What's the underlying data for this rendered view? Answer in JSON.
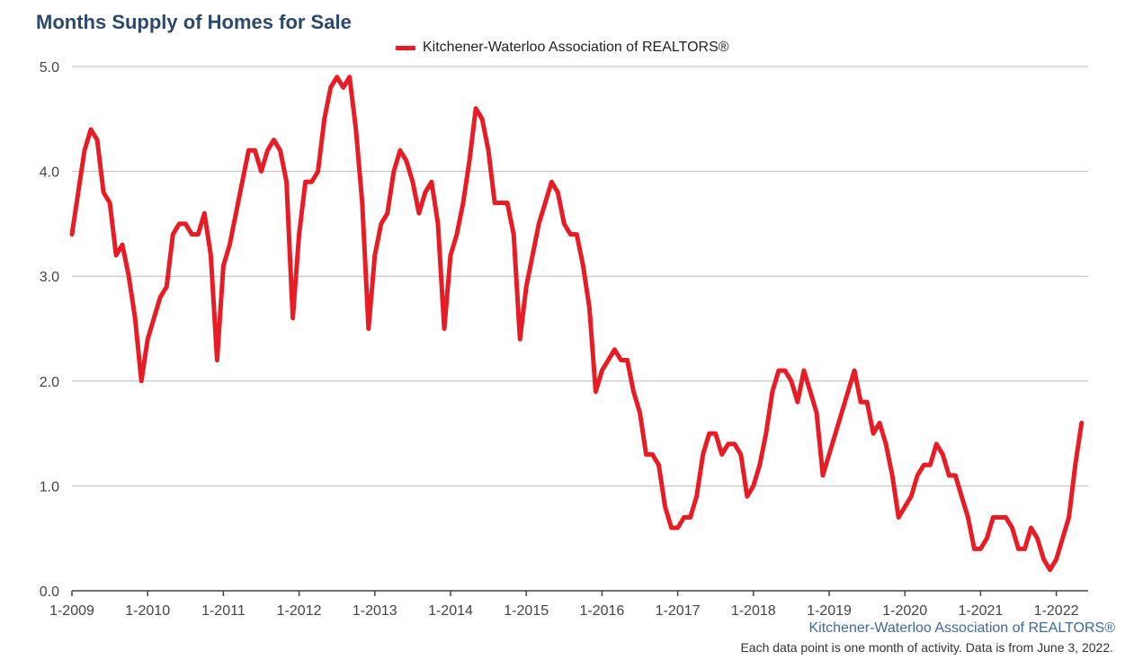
{
  "title": "Months Supply of Homes for Sale",
  "legend_label": "Kitchener-Waterloo Association of REALTORS®",
  "footer_source": "Kitchener-Waterloo Association of REALTORS®",
  "footer_note": "Each data point is one month of activity. Data is from June 3, 2022.",
  "colors": {
    "series": "#e81c24",
    "title": "#2b4a6b",
    "grid": "#bbbbbb",
    "source": "#3e6a96"
  },
  "chart_data": {
    "type": "line",
    "title": "Months Supply of Homes for Sale",
    "xlabel": "",
    "ylabel": "",
    "ylim": [
      0,
      5
    ],
    "yticks": [
      "0.0",
      "1.0",
      "2.0",
      "3.0",
      "4.0",
      "5.0"
    ],
    "xticks": [
      "1-2009",
      "1-2010",
      "1-2011",
      "1-2012",
      "1-2013",
      "1-2014",
      "1-2015",
      "1-2016",
      "1-2017",
      "1-2018",
      "1-2019",
      "1-2020",
      "1-2021",
      "1-2022"
    ],
    "grid": "horizontal",
    "legend": "top-center",
    "start": "1-2009",
    "series": [
      {
        "name": "Kitchener-Waterloo Association of REALTORS®",
        "values": [
          3.4,
          3.8,
          4.2,
          4.4,
          4.3,
          3.8,
          3.7,
          3.2,
          3.3,
          3.0,
          2.6,
          2.0,
          2.4,
          2.6,
          2.8,
          2.9,
          3.4,
          3.5,
          3.5,
          3.4,
          3.4,
          3.6,
          3.2,
          2.2,
          3.1,
          3.3,
          3.6,
          3.9,
          4.2,
          4.2,
          4.0,
          4.2,
          4.3,
          4.2,
          3.9,
          2.6,
          3.4,
          3.9,
          3.9,
          4.0,
          4.5,
          4.8,
          4.9,
          4.8,
          4.9,
          4.4,
          3.7,
          2.5,
          3.2,
          3.5,
          3.6,
          4.0,
          4.2,
          4.1,
          3.9,
          3.6,
          3.8,
          3.9,
          3.5,
          2.5,
          3.2,
          3.4,
          3.7,
          4.1,
          4.6,
          4.5,
          4.2,
          3.7,
          3.7,
          3.7,
          3.4,
          2.4,
          2.9,
          3.2,
          3.5,
          3.7,
          3.9,
          3.8,
          3.5,
          3.4,
          3.4,
          3.1,
          2.7,
          1.9,
          2.1,
          2.2,
          2.3,
          2.2,
          2.2,
          1.9,
          1.7,
          1.3,
          1.3,
          1.2,
          0.8,
          0.6,
          0.6,
          0.7,
          0.7,
          0.9,
          1.3,
          1.5,
          1.5,
          1.3,
          1.4,
          1.4,
          1.3,
          0.9,
          1.0,
          1.2,
          1.5,
          1.9,
          2.1,
          2.1,
          2.0,
          1.8,
          2.1,
          1.9,
          1.7,
          1.1,
          1.3,
          1.5,
          1.7,
          1.9,
          2.1,
          1.8,
          1.8,
          1.5,
          1.6,
          1.4,
          1.1,
          0.7,
          0.8,
          0.9,
          1.1,
          1.2,
          1.2,
          1.4,
          1.3,
          1.1,
          1.1,
          0.9,
          0.7,
          0.4,
          0.4,
          0.5,
          0.7,
          0.7,
          0.7,
          0.6,
          0.4,
          0.4,
          0.6,
          0.5,
          0.3,
          0.2,
          0.3,
          0.5,
          0.7,
          1.2,
          1.6
        ]
      }
    ]
  }
}
